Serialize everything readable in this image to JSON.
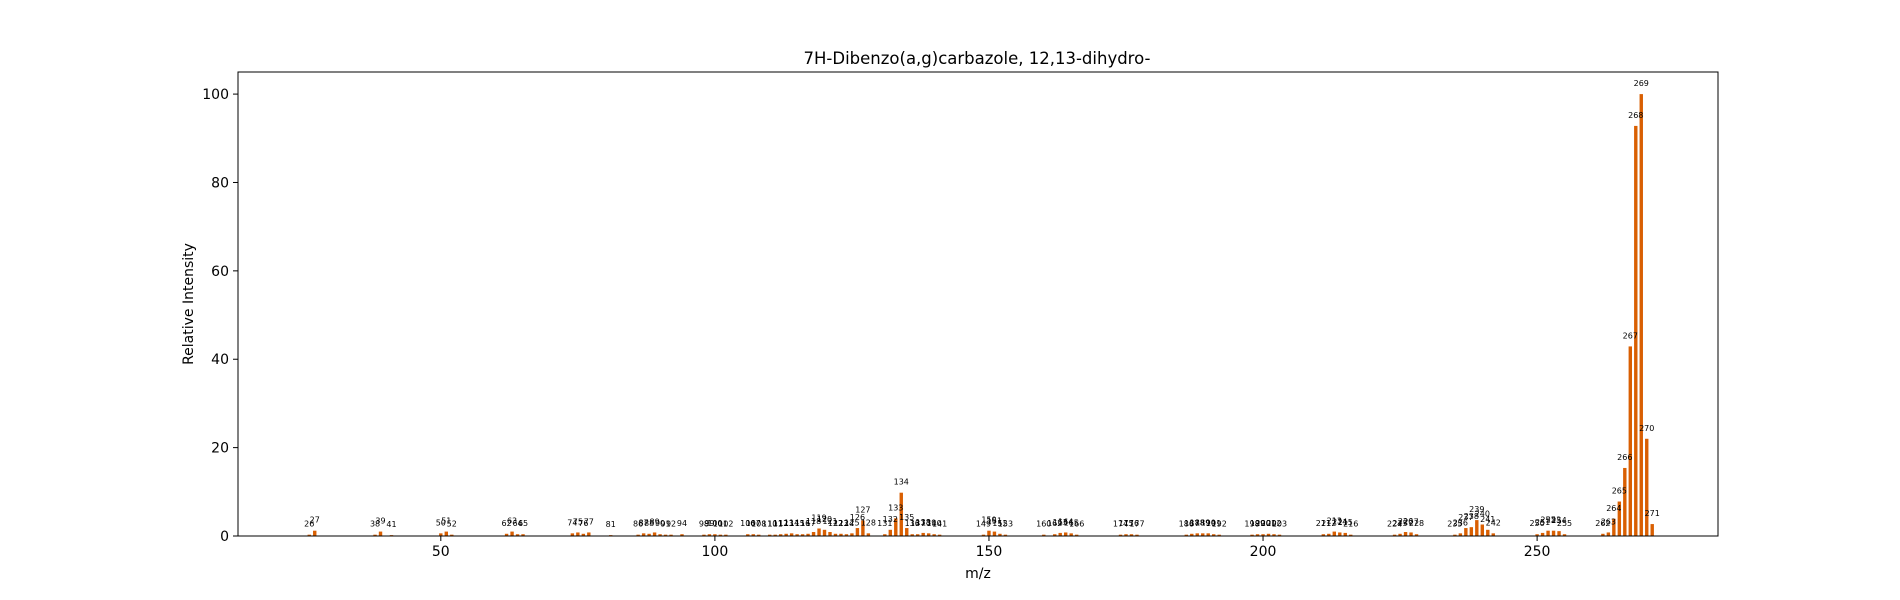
{
  "chart_data": {
    "type": "bar",
    "title": "7H-Dibenzo(a,g)carbazole, 12,13-dihydro-",
    "xlabel": "m/z",
    "ylabel": "Relative Intensity",
    "xlim": [
      13,
      283
    ],
    "ylim": [
      0,
      105
    ],
    "xticks": [
      50,
      100,
      150,
      200,
      250
    ],
    "yticks": [
      0,
      20,
      40,
      60,
      80,
      100
    ],
    "grid": false,
    "bar_color": "#d95f02",
    "points": [
      {
        "x": 26,
        "y": 0.3,
        "label": "26"
      },
      {
        "x": 27,
        "y": 1.2,
        "label": "27"
      },
      {
        "x": 38,
        "y": 0.3,
        "label": "38"
      },
      {
        "x": 39,
        "y": 1.0,
        "label": "39"
      },
      {
        "x": 41,
        "y": 0.2,
        "label": "41"
      },
      {
        "x": 50,
        "y": 0.6,
        "label": "50"
      },
      {
        "x": 51,
        "y": 1.0,
        "label": "51"
      },
      {
        "x": 52,
        "y": 0.3,
        "label": "52"
      },
      {
        "x": 62,
        "y": 0.5,
        "label": "62"
      },
      {
        "x": 63,
        "y": 1.0,
        "label": "63"
      },
      {
        "x": 64,
        "y": 0.4,
        "label": "64"
      },
      {
        "x": 65,
        "y": 0.4,
        "label": "65"
      },
      {
        "x": 74,
        "y": 0.6,
        "label": "74"
      },
      {
        "x": 75,
        "y": 0.8,
        "label": "75"
      },
      {
        "x": 76,
        "y": 0.5,
        "label": "76"
      },
      {
        "x": 77,
        "y": 0.8,
        "label": "77"
      },
      {
        "x": 81,
        "y": 0.2,
        "label": "81"
      },
      {
        "x": 86,
        "y": 0.3,
        "label": "86"
      },
      {
        "x": 87,
        "y": 0.6,
        "label": "87"
      },
      {
        "x": 88,
        "y": 0.5,
        "label": "88"
      },
      {
        "x": 89,
        "y": 0.8,
        "label": "89"
      },
      {
        "x": 90,
        "y": 0.4,
        "label": "90"
      },
      {
        "x": 91,
        "y": 0.3,
        "label": "91"
      },
      {
        "x": 92,
        "y": 0.3,
        "label": "92"
      },
      {
        "x": 94,
        "y": 0.4,
        "label": "94"
      },
      {
        "x": 98,
        "y": 0.3,
        "label": "98"
      },
      {
        "x": 99,
        "y": 0.4,
        "label": "99"
      },
      {
        "x": 100,
        "y": 0.4,
        "label": "100"
      },
      {
        "x": 101,
        "y": 0.3,
        "label": "101"
      },
      {
        "x": 102,
        "y": 0.3,
        "label": "102"
      },
      {
        "x": 106,
        "y": 0.4,
        "label": "106"
      },
      {
        "x": 107,
        "y": 0.4,
        "label": "107"
      },
      {
        "x": 108,
        "y": 0.3,
        "label": "108"
      },
      {
        "x": 110,
        "y": 0.3,
        "label": "110"
      },
      {
        "x": 111,
        "y": 0.3,
        "label": "111"
      },
      {
        "x": 112,
        "y": 0.4,
        "label": "112"
      },
      {
        "x": 113,
        "y": 0.5,
        "label": "113"
      },
      {
        "x": 114,
        "y": 0.6,
        "label": "114"
      },
      {
        "x": 115,
        "y": 0.4,
        "label": "115"
      },
      {
        "x": 116,
        "y": 0.4,
        "label": "116"
      },
      {
        "x": 117,
        "y": 0.5,
        "label": "117"
      },
      {
        "x": 118,
        "y": 0.9,
        "label": "118"
      },
      {
        "x": 119,
        "y": 1.7,
        "label": "119"
      },
      {
        "x": 120,
        "y": 1.4,
        "label": "120"
      },
      {
        "x": 121,
        "y": 0.9,
        "label": "121"
      },
      {
        "x": 122,
        "y": 0.5,
        "label": "122"
      },
      {
        "x": 123,
        "y": 0.5,
        "label": "123"
      },
      {
        "x": 124,
        "y": 0.4,
        "label": "124"
      },
      {
        "x": 125,
        "y": 0.6,
        "label": "125"
      },
      {
        "x": 126,
        "y": 1.8,
        "label": "126"
      },
      {
        "x": 127,
        "y": 3.5,
        "label": "127"
      },
      {
        "x": 128,
        "y": 0.6,
        "label": "128"
      },
      {
        "x": 131,
        "y": 0.4,
        "label": "131"
      },
      {
        "x": 132,
        "y": 1.4,
        "label": "132"
      },
      {
        "x": 133,
        "y": 4.0,
        "label": "133"
      },
      {
        "x": 134,
        "y": 9.8,
        "label": "134"
      },
      {
        "x": 135,
        "y": 1.8,
        "label": "135"
      },
      {
        "x": 136,
        "y": 0.4,
        "label": "136"
      },
      {
        "x": 137,
        "y": 0.4,
        "label": "137"
      },
      {
        "x": 138,
        "y": 0.7,
        "label": "138"
      },
      {
        "x": 139,
        "y": 0.6,
        "label": "139"
      },
      {
        "x": 140,
        "y": 0.4,
        "label": "140"
      },
      {
        "x": 141,
        "y": 0.3,
        "label": "141"
      },
      {
        "x": 149,
        "y": 0.3,
        "label": "149"
      },
      {
        "x": 150,
        "y": 1.2,
        "label": "150"
      },
      {
        "x": 151,
        "y": 1.0,
        "label": "151"
      },
      {
        "x": 152,
        "y": 0.5,
        "label": "152"
      },
      {
        "x": 153,
        "y": 0.3,
        "label": "153"
      },
      {
        "x": 160,
        "y": 0.3,
        "label": "160"
      },
      {
        "x": 162,
        "y": 0.4,
        "label": "162"
      },
      {
        "x": 163,
        "y": 0.7,
        "label": "163"
      },
      {
        "x": 164,
        "y": 0.8,
        "label": "164"
      },
      {
        "x": 165,
        "y": 0.6,
        "label": "165"
      },
      {
        "x": 166,
        "y": 0.3,
        "label": "166"
      },
      {
        "x": 174,
        "y": 0.3,
        "label": "174"
      },
      {
        "x": 175,
        "y": 0.4,
        "label": "175"
      },
      {
        "x": 176,
        "y": 0.4,
        "label": "176"
      },
      {
        "x": 177,
        "y": 0.3,
        "label": "177"
      },
      {
        "x": 186,
        "y": 0.3,
        "label": "186"
      },
      {
        "x": 187,
        "y": 0.5,
        "label": "187"
      },
      {
        "x": 188,
        "y": 0.6,
        "label": "188"
      },
      {
        "x": 189,
        "y": 0.6,
        "label": "189"
      },
      {
        "x": 190,
        "y": 0.6,
        "label": "190"
      },
      {
        "x": 191,
        "y": 0.4,
        "label": "191"
      },
      {
        "x": 192,
        "y": 0.3,
        "label": "192"
      },
      {
        "x": 198,
        "y": 0.3,
        "label": "198"
      },
      {
        "x": 199,
        "y": 0.4,
        "label": "199"
      },
      {
        "x": 200,
        "y": 0.4,
        "label": "200"
      },
      {
        "x": 201,
        "y": 0.5,
        "label": "201"
      },
      {
        "x": 202,
        "y": 0.4,
        "label": "202"
      },
      {
        "x": 203,
        "y": 0.3,
        "label": "203"
      },
      {
        "x": 211,
        "y": 0.4,
        "label": "211"
      },
      {
        "x": 212,
        "y": 0.5,
        "label": "212"
      },
      {
        "x": 213,
        "y": 1.0,
        "label": "213"
      },
      {
        "x": 214,
        "y": 0.8,
        "label": "214"
      },
      {
        "x": 215,
        "y": 0.7,
        "label": "215"
      },
      {
        "x": 216,
        "y": 0.3,
        "label": "216"
      },
      {
        "x": 224,
        "y": 0.3,
        "label": "224"
      },
      {
        "x": 225,
        "y": 0.5,
        "label": "225"
      },
      {
        "x": 226,
        "y": 0.9,
        "label": "226"
      },
      {
        "x": 227,
        "y": 0.8,
        "label": "227"
      },
      {
        "x": 228,
        "y": 0.4,
        "label": "228"
      },
      {
        "x": 235,
        "y": 0.3,
        "label": "235"
      },
      {
        "x": 236,
        "y": 0.6,
        "label": "236"
      },
      {
        "x": 237,
        "y": 1.8,
        "label": "237"
      },
      {
        "x": 238,
        "y": 2.0,
        "label": "238"
      },
      {
        "x": 239,
        "y": 3.6,
        "label": "239"
      },
      {
        "x": 240,
        "y": 2.6,
        "label": "240"
      },
      {
        "x": 241,
        "y": 1.4,
        "label": "241"
      },
      {
        "x": 242,
        "y": 0.6,
        "label": "242"
      },
      {
        "x": 250,
        "y": 0.4,
        "label": "250"
      },
      {
        "x": 251,
        "y": 0.7,
        "label": "251"
      },
      {
        "x": 252,
        "y": 1.2,
        "label": "252"
      },
      {
        "x": 253,
        "y": 1.2,
        "label": "253"
      },
      {
        "x": 254,
        "y": 1.1,
        "label": "254"
      },
      {
        "x": 255,
        "y": 0.4,
        "label": "255"
      },
      {
        "x": 262,
        "y": 0.5,
        "label": "262"
      },
      {
        "x": 263,
        "y": 0.8,
        "label": "263"
      },
      {
        "x": 264,
        "y": 3.9,
        "label": "264"
      },
      {
        "x": 265,
        "y": 7.8,
        "label": "265"
      },
      {
        "x": 266,
        "y": 15.4,
        "label": "266"
      },
      {
        "x": 267,
        "y": 42.9,
        "label": "267"
      },
      {
        "x": 268,
        "y": 92.8,
        "label": "268"
      },
      {
        "x": 269,
        "y": 100.0,
        "label": "269"
      },
      {
        "x": 270,
        "y": 22.0,
        "label": "270"
      },
      {
        "x": 271,
        "y": 2.7,
        "label": "271"
      }
    ]
  }
}
